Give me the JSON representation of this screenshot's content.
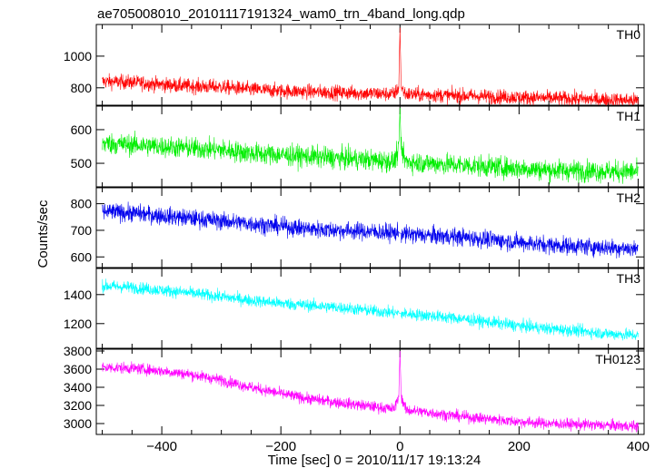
{
  "title": "ae705008010_20101117191324_wam0_trn_4band_long.qdp",
  "ylabel": "Counts/sec",
  "xlabel": "Time [sec] 0 = 2010/11/17 19:13:24",
  "chart_data": [
    {
      "type": "line",
      "panel": "TH0",
      "color": "#ff0000",
      "xlim": [
        -510,
        410
      ],
      "ylim": [
        690,
        1200
      ],
      "yticks": [
        800,
        1000
      ],
      "x": [
        -500,
        -450,
        -400,
        -350,
        -300,
        -250,
        -200,
        -150,
        -100,
        -50,
        -10,
        -2,
        0,
        2,
        10,
        50,
        100,
        150,
        200,
        250,
        300,
        350,
        400
      ],
      "y": [
        840,
        835,
        820,
        810,
        805,
        790,
        780,
        775,
        770,
        765,
        760,
        800,
        1180,
        800,
        760,
        755,
        750,
        745,
        740,
        735,
        730,
        725,
        720
      ]
    },
    {
      "type": "line",
      "panel": "TH1",
      "color": "#00ee00",
      "xlim": [
        -510,
        410
      ],
      "ylim": [
        430,
        670
      ],
      "yticks": [
        500,
        600
      ],
      "x": [
        -500,
        -450,
        -400,
        -350,
        -300,
        -250,
        -200,
        -150,
        -100,
        -50,
        -10,
        -2,
        0,
        2,
        10,
        50,
        100,
        150,
        200,
        250,
        300,
        350,
        400
      ],
      "y": [
        560,
        555,
        550,
        545,
        540,
        530,
        525,
        520,
        515,
        510,
        505,
        540,
        665,
        540,
        505,
        500,
        495,
        490,
        485,
        480,
        478,
        476,
        475
      ]
    },
    {
      "type": "line",
      "panel": "TH2",
      "color": "#0000ee",
      "xlim": [
        -510,
        410
      ],
      "ylim": [
        560,
        860
      ],
      "yticks": [
        600,
        700,
        800
      ],
      "x": [
        -500,
        -450,
        -400,
        -350,
        -300,
        -250,
        -200,
        -150,
        -100,
        -50,
        -10,
        0,
        10,
        50,
        100,
        150,
        200,
        250,
        300,
        350,
        400
      ],
      "y": [
        770,
        765,
        755,
        745,
        735,
        725,
        715,
        705,
        700,
        695,
        690,
        690,
        685,
        680,
        675,
        665,
        655,
        645,
        640,
        635,
        630
      ]
    },
    {
      "type": "line",
      "panel": "TH3",
      "color": "#00ffff",
      "xlim": [
        -510,
        410
      ],
      "ylim": [
        1030,
        1580
      ],
      "yticks": [
        1200,
        1400
      ],
      "x": [
        -500,
        -450,
        -400,
        -350,
        -300,
        -250,
        -200,
        -150,
        -100,
        -50,
        0,
        50,
        100,
        150,
        200,
        250,
        300,
        350,
        400
      ],
      "y": [
        1460,
        1450,
        1430,
        1410,
        1385,
        1360,
        1340,
        1325,
        1310,
        1290,
        1270,
        1255,
        1235,
        1210,
        1185,
        1165,
        1150,
        1130,
        1120
      ]
    },
    {
      "type": "line",
      "panel": "TH0123",
      "color": "#ff00ff",
      "xlim": [
        -510,
        410
      ],
      "ylim": [
        2880,
        3820
      ],
      "yticks": [
        3000,
        3200,
        3400,
        3600,
        3800
      ],
      "x": [
        -500,
        -450,
        -400,
        -350,
        -300,
        -250,
        -200,
        -150,
        -100,
        -50,
        -10,
        -2,
        0,
        2,
        10,
        50,
        100,
        150,
        200,
        250,
        300,
        350,
        400
      ],
      "y": [
        3620,
        3610,
        3580,
        3540,
        3480,
        3400,
        3330,
        3270,
        3230,
        3190,
        3160,
        3300,
        3800,
        3300,
        3150,
        3120,
        3080,
        3050,
        3020,
        3000,
        2990,
        2980,
        2970
      ]
    }
  ],
  "x_ticks": [
    -400,
    -200,
    0,
    200,
    400
  ]
}
